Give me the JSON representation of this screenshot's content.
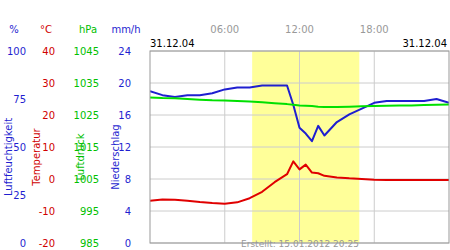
{
  "chart_data": {
    "type": "line",
    "x_range_labels": [
      "31.12.04",
      "31.12.04"
    ],
    "footer": "Erstellt: 15.01.2012 20:25",
    "xlim": [
      0,
      24
    ],
    "xticks": [
      {
        "value": 6,
        "label": "06:00"
      },
      {
        "value": 12,
        "label": "12:00"
      },
      {
        "value": 18,
        "label": "18:00"
      }
    ],
    "daylight": [
      8.2,
      16.8
    ],
    "grid": true,
    "axes": [
      {
        "label": "Luftfeuchtigkeit",
        "unit": "%",
        "color": "#1f1fd0",
        "ylim": [
          0,
          100
        ],
        "yticks": [
          0,
          25,
          50,
          75,
          100
        ]
      },
      {
        "label": "Temperatur",
        "unit": "°C",
        "color": "#d00000",
        "ylim": [
          -20,
          40
        ],
        "yticks": [
          -20,
          -10,
          0,
          10,
          20,
          30,
          40
        ]
      },
      {
        "label": "Luftdruck",
        "unit": "hPa",
        "color": "#00c000",
        "ylim": [
          985,
          1045
        ],
        "yticks": [
          985,
          995,
          1005,
          1015,
          1025,
          1035,
          1045
        ]
      },
      {
        "label": "Niederschlag",
        "unit": "mm/h",
        "color": "#1f1fd0",
        "ylim": [
          0,
          24
        ],
        "yticks": [
          0,
          4,
          8,
          12,
          16,
          20,
          24
        ]
      }
    ],
    "x": [
      0,
      1,
      2,
      3,
      4,
      5,
      6,
      7,
      8,
      9,
      10,
      11,
      11.5,
      12,
      12.5,
      13,
      13.5,
      14,
      15,
      16,
      17,
      18,
      19,
      20,
      21,
      22,
      23,
      24
    ],
    "series": [
      {
        "name": "Luftfeuchtigkeit",
        "axis": "Luftfeuchtigkeit",
        "color": "#1f1fd0",
        "values": [
          79,
          77,
          76,
          77,
          77,
          78,
          80,
          81,
          81,
          82,
          82,
          82,
          72,
          60,
          57,
          53,
          61,
          56,
          63,
          67,
          70,
          73,
          74,
          74,
          74,
          74,
          75,
          73
        ]
      },
      {
        "name": "Luftdruck",
        "axis": "Luftdruck",
        "color": "#00e000",
        "values": [
          1030.5,
          1030.3,
          1030.2,
          1030.0,
          1029.8,
          1029.6,
          1029.5,
          1029.4,
          1029.2,
          1029.0,
          1028.7,
          1028.4,
          1028.2,
          1028.0,
          1027.9,
          1027.8,
          1027.6,
          1027.5,
          1027.5,
          1027.6,
          1027.7,
          1027.8,
          1027.9,
          1028.0,
          1028.0,
          1028.1,
          1028.2,
          1028.3
        ]
      },
      {
        "name": "Temperatur",
        "axis": "Temperatur",
        "color": "#e00000",
        "values": [
          -6.8,
          -6.4,
          -6.5,
          -6.8,
          -7.2,
          -7.5,
          -7.7,
          -7.3,
          -6.0,
          -4.0,
          -1.0,
          1.5,
          5.5,
          3.0,
          4.5,
          2.0,
          1.8,
          1.0,
          0.5,
          0.2,
          0,
          -0.2,
          -0.3,
          -0.3,
          -0.3,
          -0.3,
          -0.3,
          -0.3
        ]
      }
    ]
  }
}
